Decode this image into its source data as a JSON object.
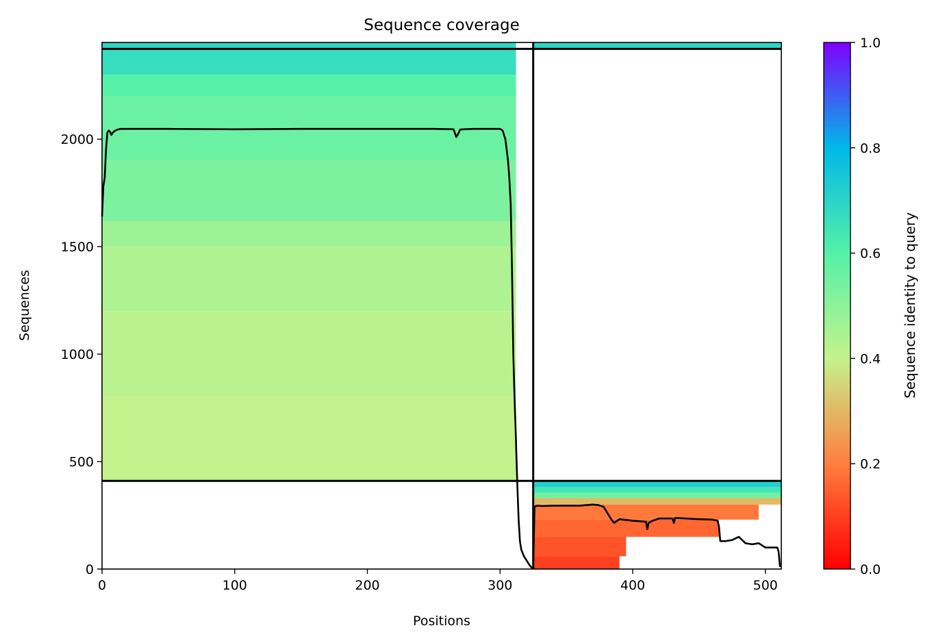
{
  "chart_data": {
    "type": "heatmap",
    "title": "Sequence coverage",
    "xlabel": "Positions",
    "ylabel": "Sequences",
    "xlim": [
      0,
      512
    ],
    "ylim": [
      0,
      2450
    ],
    "x_ticks": [
      0,
      100,
      200,
      300,
      400,
      500
    ],
    "y_ticks": [
      0,
      500,
      1000,
      1500,
      2000
    ],
    "grid": false,
    "colorbar": {
      "label": "Sequence identity to query",
      "range": [
        0,
        1
      ],
      "ticks": [
        0.0,
        0.2,
        0.4,
        0.6,
        0.8,
        1.0
      ],
      "colormap": "rainbow_r",
      "stops": [
        "#ff0000",
        "#ff7f3f",
        "#c4f28c",
        "#55f1a8",
        "#00b8e8",
        "#7f00ff"
      ]
    },
    "separators": {
      "vertical_x": 325,
      "horizontal_left_y": 410,
      "horizontal_right_y": 410,
      "top_y": 2420
    },
    "blocks": [
      {
        "name": "block-left-top-strip",
        "x_start": 0,
        "x_end": 312,
        "bands": [
          {
            "y0": 2420,
            "y1": 2450,
            "identity": 0.7
          }
        ]
      },
      {
        "name": "block-right-top-strip",
        "x_start": 325,
        "x_end": 512,
        "bands": [
          {
            "y0": 2420,
            "y1": 2450,
            "identity": 0.7
          }
        ]
      },
      {
        "name": "block-left-main",
        "x_start": 0,
        "x_end": 312,
        "bands": [
          {
            "y0": 2300,
            "y1": 2420,
            "identity": 0.67
          },
          {
            "y0": 2200,
            "y1": 2300,
            "identity": 0.6
          },
          {
            "y0": 1900,
            "y1": 2200,
            "identity": 0.56
          },
          {
            "y0": 1620,
            "y1": 1900,
            "identity": 0.53
          },
          {
            "y0": 1500,
            "y1": 1620,
            "identity": 0.47
          },
          {
            "y0": 1200,
            "y1": 1500,
            "identity": 0.44
          },
          {
            "y0": 800,
            "y1": 1200,
            "identity": 0.42
          },
          {
            "y0": 410,
            "y1": 800,
            "identity": 0.4
          }
        ]
      },
      {
        "name": "block-right-main",
        "x_start": 325,
        "x_end": 512,
        "bands": [
          {
            "y0": 380,
            "y1": 410,
            "identity": 0.72
          },
          {
            "y0": 355,
            "y1": 380,
            "identity": 0.64
          },
          {
            "y0": 330,
            "y1": 355,
            "identity": 0.55
          },
          {
            "y0": 300,
            "y1": 330,
            "identity": 0.3
          },
          {
            "y0": 230,
            "y1": 300,
            "identity": 0.19,
            "x_end": 495
          },
          {
            "y0": 150,
            "y1": 230,
            "identity": 0.16,
            "x_end": 465
          },
          {
            "y0": 60,
            "y1": 150,
            "identity": 0.13,
            "x_end": 395
          },
          {
            "y0": 0,
            "y1": 60,
            "identity": 0.1,
            "x_end": 390
          }
        ]
      }
    ],
    "coverage_line": {
      "x": [
        0,
        1,
        2,
        3,
        4,
        5,
        6,
        7,
        8,
        10,
        12,
        14,
        20,
        50,
        100,
        150,
        200,
        250,
        265,
        267,
        268,
        270,
        280,
        290,
        300,
        302,
        304,
        306,
        307,
        308,
        309,
        310,
        311,
        312,
        313,
        314,
        315,
        316,
        318,
        320,
        322,
        324,
        325,
        326,
        328,
        332,
        340,
        350,
        360,
        370,
        374,
        378,
        380,
        382,
        384,
        386,
        390,
        400,
        410,
        411,
        412,
        415,
        420,
        430,
        431,
        432,
        440,
        450,
        460,
        464,
        465,
        466,
        470,
        475,
        480,
        485,
        490,
        495,
        500,
        505,
        509,
        510,
        511
      ],
      "y": [
        1640,
        1780,
        1820,
        1950,
        2030,
        2040,
        2035,
        2020,
        2030,
        2040,
        2045,
        2048,
        2048,
        2048,
        2046,
        2048,
        2048,
        2048,
        2046,
        2010,
        2020,
        2045,
        2048,
        2048,
        2048,
        2040,
        2000,
        1900,
        1820,
        1700,
        1400,
        1000,
        780,
        600,
        400,
        230,
        130,
        90,
        60,
        40,
        20,
        5,
        2,
        290,
        295,
        293,
        295,
        295,
        295,
        300,
        298,
        290,
        270,
        250,
        230,
        215,
        232,
        225,
        220,
        185,
        215,
        225,
        235,
        235,
        215,
        238,
        235,
        232,
        230,
        225,
        200,
        130,
        130,
        135,
        150,
        120,
        115,
        120,
        100,
        100,
        100,
        80,
        10
      ]
    }
  }
}
